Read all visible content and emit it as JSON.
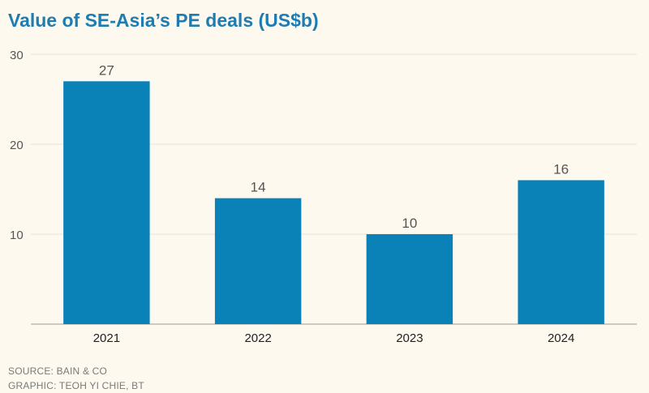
{
  "chart_data": {
    "type": "bar",
    "title": "Value of SE-Asia’s PE deals (US$b)",
    "categories": [
      "2021",
      "2022",
      "2023",
      "2024"
    ],
    "values": [
      27,
      14,
      10,
      16
    ],
    "ylim": [
      0,
      30
    ],
    "yticks": [
      10,
      20,
      30
    ],
    "grid": true,
    "bar_color": "#0a82b8"
  },
  "footer": {
    "source": "SOURCE: BAIN & CO",
    "graphic": "GRAPHIC: TEOH YI CHIE, BT"
  }
}
